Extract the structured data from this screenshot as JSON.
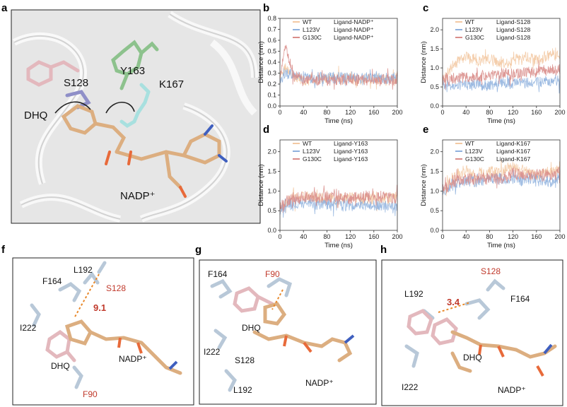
{
  "panel_labels": [
    "a",
    "b",
    "c",
    "d",
    "e",
    "f",
    "g",
    "h"
  ],
  "panel_a": {
    "labels": [
      "Y163",
      "S128",
      "K167",
      "DHQ",
      "NADP⁺"
    ]
  },
  "panel_f": {
    "residues": [
      "F164",
      "L192",
      "S128",
      "I222",
      "DHQ",
      "F90",
      "NADP⁺"
    ],
    "distance": "9.1"
  },
  "panel_g": {
    "residues": [
      "F164",
      "F90",
      "DHQ",
      "I222",
      "S128",
      "L192",
      "NADP⁺"
    ]
  },
  "panel_h": {
    "residues": [
      "S128",
      "L192",
      "F164",
      "DHQ",
      "I222",
      "NADP⁺"
    ],
    "distance": "3.4"
  },
  "colors": {
    "WT": "#f3c9a3",
    "L123V": "#8fb1de",
    "G130C": "#d98d8a",
    "red_label": "#c0392b"
  },
  "chart_data": [
    {
      "panel": "b",
      "type": "line",
      "ylabel": "Distance (nm)",
      "xlabel": "Time (ns)",
      "xlim": [
        0,
        200
      ],
      "ylim": [
        0.0,
        0.8
      ],
      "xticks": [
        "0",
        "40",
        "80",
        "120",
        "160",
        "200"
      ],
      "yticks": [
        "0.0",
        "0.1",
        "0.2",
        "0.3",
        "0.4",
        "0.5",
        "0.6",
        "0.7",
        "0.8"
      ],
      "legend": [
        {
          "name": "WT",
          "desc": "Ligand-NADP⁺"
        },
        {
          "name": "L123V",
          "desc": "Ligand-NADP⁺"
        },
        {
          "name": "G130C",
          "desc": "Ligand-NADP⁺"
        }
      ],
      "series": [
        {
          "name": "WT",
          "x": [
            0,
            10,
            20,
            40,
            60,
            80,
            100,
            120,
            140,
            160,
            180,
            200
          ],
          "values": [
            0.25,
            0.35,
            0.28,
            0.23,
            0.24,
            0.24,
            0.25,
            0.24,
            0.24,
            0.25,
            0.24,
            0.24
          ]
        },
        {
          "name": "L123V",
          "x": [
            0,
            10,
            20,
            40,
            60,
            80,
            100,
            120,
            140,
            160,
            180,
            200
          ],
          "values": [
            0.25,
            0.3,
            0.27,
            0.27,
            0.26,
            0.26,
            0.26,
            0.26,
            0.25,
            0.26,
            0.25,
            0.25
          ]
        },
        {
          "name": "G130C",
          "x": [
            0,
            10,
            20,
            40,
            60,
            80,
            100,
            120,
            140,
            160,
            180,
            200
          ],
          "values": [
            0.25,
            0.55,
            0.3,
            0.23,
            0.24,
            0.23,
            0.24,
            0.24,
            0.24,
            0.24,
            0.24,
            0.24
          ]
        }
      ]
    },
    {
      "panel": "c",
      "type": "line",
      "ylabel": "Distance (nm)",
      "xlabel": "Time (ns)",
      "xlim": [
        0,
        200
      ],
      "ylim": [
        0.0,
        2.3
      ],
      "xticks": [
        "0",
        "40",
        "80",
        "120",
        "160",
        "200"
      ],
      "yticks": [
        "0.0",
        "0.5",
        "1.0",
        "1.5",
        "2.0"
      ],
      "legend": [
        {
          "name": "WT",
          "desc": "Ligand-S128"
        },
        {
          "name": "L123V",
          "desc": "Ligand-S128"
        },
        {
          "name": "G130C",
          "desc": "Ligand-S128"
        }
      ],
      "series": [
        {
          "name": "WT",
          "x": [
            0,
            10,
            20,
            40,
            60,
            80,
            100,
            120,
            140,
            160,
            180,
            200
          ],
          "values": [
            0.7,
            0.9,
            1.1,
            1.3,
            1.2,
            1.25,
            1.1,
            1.2,
            1.3,
            1.2,
            1.3,
            1.4
          ]
        },
        {
          "name": "L123V",
          "x": [
            0,
            10,
            20,
            40,
            60,
            80,
            100,
            120,
            140,
            160,
            180,
            200
          ],
          "values": [
            0.6,
            0.55,
            0.55,
            0.55,
            0.55,
            0.55,
            0.6,
            0.6,
            0.62,
            0.65,
            0.65,
            0.6
          ]
        },
        {
          "name": "G130C",
          "x": [
            0,
            10,
            20,
            40,
            60,
            80,
            100,
            120,
            140,
            160,
            180,
            200
          ],
          "values": [
            0.7,
            0.7,
            0.75,
            0.75,
            0.75,
            0.8,
            0.85,
            0.85,
            0.9,
            0.9,
            0.95,
            0.95
          ]
        }
      ]
    },
    {
      "panel": "d",
      "type": "line",
      "ylabel": "Distance (nm)",
      "xlabel": "Time (ns)",
      "xlim": [
        0,
        200
      ],
      "ylim": [
        0.0,
        2.3
      ],
      "xticks": [
        "0",
        "40",
        "80",
        "120",
        "160",
        "200"
      ],
      "yticks": [
        "0.0",
        "0.5",
        "1.0",
        "1.5",
        "2.0"
      ],
      "legend": [
        {
          "name": "WT",
          "desc": "Ligand-Y163"
        },
        {
          "name": "L123V",
          "desc": "Ligand-Y163"
        },
        {
          "name": "G130C",
          "desc": "Ligand-Y163"
        }
      ],
      "series": [
        {
          "name": "WT",
          "x": [
            0,
            10,
            20,
            40,
            60,
            80,
            100,
            120,
            140,
            160,
            180,
            200
          ],
          "values": [
            0.6,
            0.7,
            0.8,
            0.85,
            0.82,
            0.8,
            0.8,
            0.85,
            0.8,
            0.8,
            0.8,
            0.8
          ]
        },
        {
          "name": "L123V",
          "x": [
            0,
            10,
            20,
            40,
            60,
            80,
            100,
            120,
            140,
            160,
            180,
            200
          ],
          "values": [
            0.6,
            0.65,
            0.7,
            0.7,
            0.65,
            0.65,
            0.65,
            0.6,
            0.65,
            0.65,
            0.6,
            0.6
          ]
        },
        {
          "name": "G130C",
          "x": [
            0,
            10,
            20,
            40,
            60,
            80,
            100,
            120,
            140,
            160,
            180,
            200
          ],
          "values": [
            0.6,
            0.75,
            0.8,
            0.85,
            0.85,
            0.85,
            0.85,
            0.8,
            0.85,
            0.85,
            0.85,
            0.85
          ]
        }
      ]
    },
    {
      "panel": "e",
      "type": "line",
      "ylabel": "Distance (nm)",
      "xlabel": "Time (ns)",
      "xlim": [
        0,
        200
      ],
      "ylim": [
        0.0,
        2.3
      ],
      "xticks": [
        "0",
        "40",
        "80",
        "120",
        "160",
        "200"
      ],
      "yticks": [
        "0.0",
        "0.5",
        "1.0",
        "1.5",
        "2.0"
      ],
      "legend": [
        {
          "name": "WT",
          "desc": "Ligand-K167"
        },
        {
          "name": "L123V",
          "desc": "Ligand-K167"
        },
        {
          "name": "G130C",
          "desc": "Ligand-K167"
        }
      ],
      "series": [
        {
          "name": "WT",
          "x": [
            0,
            10,
            20,
            40,
            60,
            80,
            100,
            120,
            140,
            160,
            180,
            200
          ],
          "values": [
            1.0,
            1.2,
            1.4,
            1.5,
            1.4,
            1.5,
            1.5,
            1.6,
            1.5,
            1.4,
            1.5,
            1.5
          ]
        },
        {
          "name": "L123V",
          "x": [
            0,
            10,
            20,
            40,
            60,
            80,
            100,
            120,
            140,
            160,
            180,
            200
          ],
          "values": [
            1.0,
            1.1,
            1.2,
            1.25,
            1.25,
            1.3,
            1.3,
            1.3,
            1.3,
            1.3,
            1.25,
            1.3
          ]
        },
        {
          "name": "G130C",
          "x": [
            0,
            10,
            20,
            40,
            60,
            80,
            100,
            120,
            140,
            160,
            180,
            200
          ],
          "values": [
            1.0,
            1.15,
            1.25,
            1.3,
            1.3,
            1.35,
            1.3,
            1.45,
            1.4,
            1.4,
            1.4,
            1.45
          ]
        }
      ]
    }
  ]
}
